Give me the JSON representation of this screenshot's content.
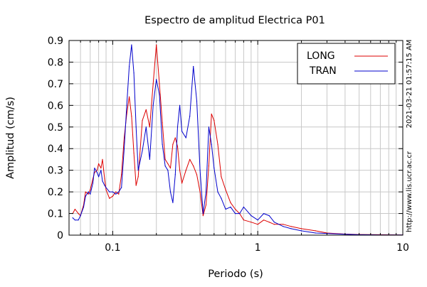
{
  "chart_data": {
    "type": "line",
    "title": "Espectro de amplitud Electrica P01",
    "xlabel": "Periodo (s)",
    "ylabel": "Amplitud (cm/s)",
    "x_scale": "log",
    "xlim": [
      0.05,
      10
    ],
    "ylim": [
      0,
      0.9
    ],
    "x_ticks": [
      0.1,
      1,
      10
    ],
    "x_tick_labels": [
      "0.1",
      "1",
      "10"
    ],
    "y_ticks": [
      0,
      0.1,
      0.2,
      0.3,
      0.4,
      0.5,
      0.6,
      0.7,
      0.8,
      0.9
    ],
    "y_tick_labels": [
      "0",
      "0.1",
      "0.2",
      "0.3",
      "0.4",
      "0.5",
      "0.6",
      "0.7",
      "0.8",
      "0.9"
    ],
    "grid": true,
    "legend_position": "top-right",
    "series": [
      {
        "name": "LONG",
        "color": "#dd0000",
        "x": [
          0.053,
          0.055,
          0.058,
          0.06,
          0.063,
          0.065,
          0.068,
          0.07,
          0.073,
          0.075,
          0.078,
          0.08,
          0.083,
          0.085,
          0.088,
          0.09,
          0.095,
          0.1,
          0.105,
          0.11,
          0.115,
          0.12,
          0.125,
          0.13,
          0.135,
          0.14,
          0.145,
          0.15,
          0.16,
          0.17,
          0.18,
          0.19,
          0.2,
          0.21,
          0.22,
          0.23,
          0.24,
          0.25,
          0.26,
          0.27,
          0.28,
          0.29,
          0.3,
          0.32,
          0.34,
          0.36,
          0.38,
          0.4,
          0.42,
          0.44,
          0.46,
          0.48,
          0.5,
          0.53,
          0.56,
          0.6,
          0.65,
          0.7,
          0.75,
          0.8,
          0.9,
          1.0,
          1.1,
          1.2,
          1.3,
          1.5,
          1.7,
          2.0,
          2.5,
          3.0,
          4.0,
          5.0,
          7.0,
          10.0
        ],
        "values": [
          0.1,
          0.12,
          0.1,
          0.09,
          0.14,
          0.2,
          0.19,
          0.21,
          0.26,
          0.29,
          0.3,
          0.33,
          0.31,
          0.35,
          0.26,
          0.21,
          0.17,
          0.18,
          0.2,
          0.19,
          0.28,
          0.45,
          0.56,
          0.64,
          0.55,
          0.38,
          0.23,
          0.27,
          0.53,
          0.58,
          0.5,
          0.7,
          0.88,
          0.7,
          0.52,
          0.35,
          0.33,
          0.31,
          0.42,
          0.45,
          0.41,
          0.3,
          0.24,
          0.3,
          0.35,
          0.32,
          0.28,
          0.2,
          0.09,
          0.14,
          0.32,
          0.56,
          0.53,
          0.42,
          0.27,
          0.21,
          0.15,
          0.12,
          0.1,
          0.07,
          0.06,
          0.05,
          0.07,
          0.06,
          0.05,
          0.05,
          0.04,
          0.03,
          0.02,
          0.01,
          0.005,
          0.003,
          0.002,
          0.001
        ]
      },
      {
        "name": "TRAN",
        "color": "#0000cc",
        "x": [
          0.053,
          0.055,
          0.058,
          0.06,
          0.063,
          0.065,
          0.068,
          0.07,
          0.073,
          0.075,
          0.078,
          0.08,
          0.083,
          0.085,
          0.088,
          0.09,
          0.095,
          0.1,
          0.105,
          0.11,
          0.115,
          0.12,
          0.125,
          0.13,
          0.135,
          0.14,
          0.145,
          0.15,
          0.16,
          0.17,
          0.18,
          0.19,
          0.2,
          0.21,
          0.22,
          0.23,
          0.24,
          0.25,
          0.26,
          0.27,
          0.28,
          0.29,
          0.3,
          0.32,
          0.34,
          0.36,
          0.38,
          0.4,
          0.42,
          0.44,
          0.46,
          0.48,
          0.5,
          0.53,
          0.56,
          0.6,
          0.65,
          0.7,
          0.75,
          0.8,
          0.9,
          1.0,
          1.1,
          1.2,
          1.3,
          1.5,
          1.7,
          2.0,
          2.5,
          3.0,
          4.0,
          5.0,
          7.0,
          10.0
        ],
        "values": [
          0.08,
          0.07,
          0.07,
          0.09,
          0.13,
          0.18,
          0.2,
          0.19,
          0.24,
          0.31,
          0.29,
          0.27,
          0.3,
          0.25,
          0.23,
          0.22,
          0.2,
          0.2,
          0.19,
          0.2,
          0.22,
          0.4,
          0.6,
          0.78,
          0.88,
          0.75,
          0.5,
          0.3,
          0.39,
          0.5,
          0.35,
          0.6,
          0.72,
          0.65,
          0.42,
          0.32,
          0.3,
          0.2,
          0.15,
          0.28,
          0.5,
          0.6,
          0.48,
          0.45,
          0.55,
          0.78,
          0.62,
          0.3,
          0.1,
          0.2,
          0.5,
          0.42,
          0.31,
          0.2,
          0.17,
          0.12,
          0.13,
          0.1,
          0.1,
          0.13,
          0.09,
          0.07,
          0.1,
          0.09,
          0.06,
          0.04,
          0.03,
          0.02,
          0.01,
          0.008,
          0.004,
          0.002,
          0.001,
          0.001
        ]
      }
    ]
  },
  "side_text": {
    "timestamp": "2021-03-21 01:57:15 AM",
    "url": "http://www.lis.ucr.ac.cr"
  }
}
